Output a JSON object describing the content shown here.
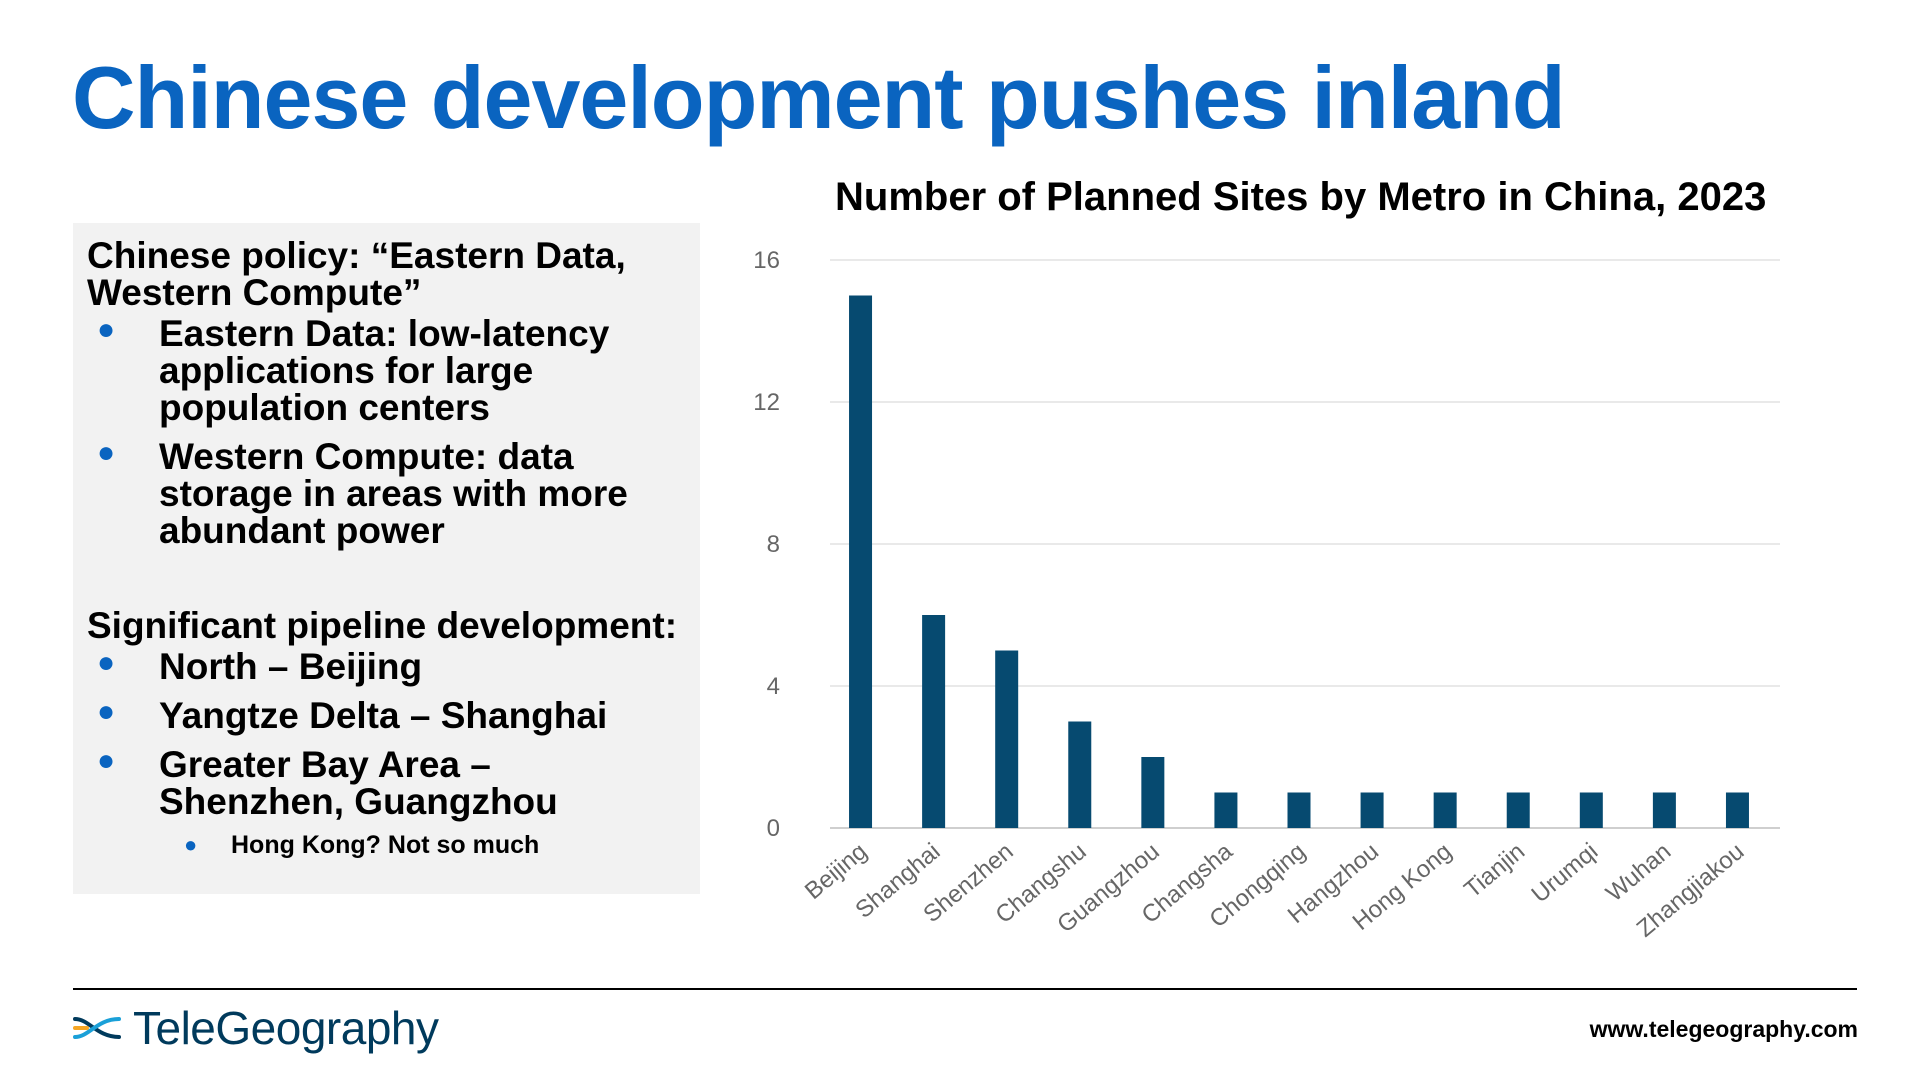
{
  "page": {
    "title": "Chinese development pushes inland"
  },
  "panel": {
    "heading1": "Chinese policy: “Eastern Data, Western Compute”",
    "bullets1": [
      "Eastern Data: low-latency applications for large population centers",
      "Western Compute: data storage in areas with more abundant power"
    ],
    "heading2": "Significant pipeline development:",
    "bullets2": [
      "North – Beijing",
      "Yangtze Delta – Shanghai",
      "Greater Bay Area – Shenzhen, Guangzhou"
    ],
    "sub_bullet": "Hong Kong? Not so much"
  },
  "footer": {
    "logo_text": "TeleGeography",
    "url": "www.telegeography.com"
  },
  "colors": {
    "title": "#0a64c0",
    "bar": "#064a70",
    "bullet": "#0a64c0"
  },
  "chart_data": {
    "type": "bar",
    "title": "Number of Planned Sites by Metro in China, 2023",
    "categories": [
      "Beijing",
      "Shanghai",
      "Shenzhen",
      "Changshu",
      "Guangzhou",
      "Changsha",
      "Chongqing",
      "Hangzhou",
      "Hong Kong",
      "Tianjin",
      "Urumqi",
      "Wuhan",
      "Zhangjiakou"
    ],
    "values": [
      15,
      6,
      5,
      3,
      2,
      1,
      1,
      1,
      1,
      1,
      1,
      1,
      1
    ],
    "xlabel": "",
    "ylabel": "",
    "ylim": [
      0,
      16
    ],
    "yticks": [
      0,
      4,
      8,
      12,
      16
    ],
    "grid": true
  }
}
